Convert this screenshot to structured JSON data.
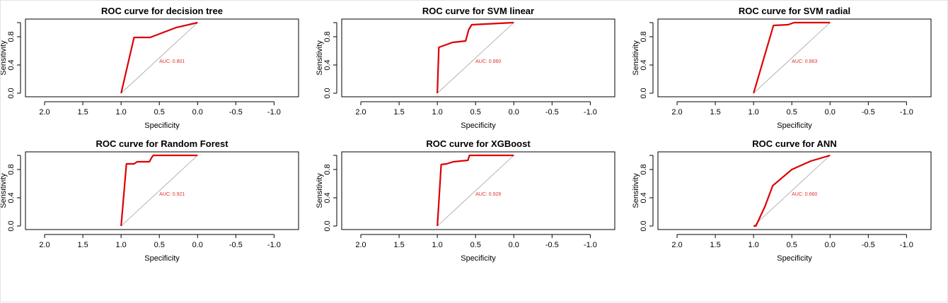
{
  "colors": {
    "roc_line": "#dd0000",
    "diagonal": "#a0a0a0",
    "auc_text": "#e03030",
    "axis": "#000000"
  },
  "chart_data": [
    {
      "type": "line",
      "title": "ROC curve for decision tree",
      "xlabel": "Specificity",
      "ylabel": "Sensitivity",
      "x_reversed": true,
      "xlim": [
        2.25,
        -1.32
      ],
      "ylim": [
        -0.05,
        1.05
      ],
      "x_ticks": [
        "2.0",
        "1.5",
        "1.0",
        "0.5",
        "0.0",
        "-0.5",
        "-1.0"
      ],
      "x_tick_values": [
        2.0,
        1.5,
        1.0,
        0.5,
        0.0,
        -0.5,
        -1.0
      ],
      "y_ticks": [
        "0.0",
        "0.4",
        "0.8"
      ],
      "y_tick_values": [
        0.0,
        0.4,
        0.8
      ],
      "auc_label": "AUC: 0.801",
      "auc_position": [
        0.5,
        0.45
      ],
      "series": [
        {
          "specificity": [
            1.0,
            0.83,
            0.62,
            0.28,
            0.0
          ],
          "sensitivity": [
            0.0,
            0.79,
            0.79,
            0.93,
            1.0
          ]
        }
      ]
    },
    {
      "type": "line",
      "title": "ROC curve for SVM linear",
      "xlabel": "Specificity",
      "ylabel": "Sensitivity",
      "x_reversed": true,
      "xlim": [
        2.25,
        -1.32
      ],
      "ylim": [
        -0.05,
        1.05
      ],
      "x_ticks": [
        "2.0",
        "1.5",
        "1.0",
        "0.5",
        "0.0",
        "-0.5",
        "-1.0"
      ],
      "x_tick_values": [
        2.0,
        1.5,
        1.0,
        0.5,
        0.0,
        -0.5,
        -1.0
      ],
      "y_ticks": [
        "0.0",
        "0.4",
        "0.8"
      ],
      "y_tick_values": [
        0.0,
        0.4,
        0.8
      ],
      "auc_label": "AUC: 0.860",
      "auc_position": [
        0.5,
        0.45
      ],
      "series": [
        {
          "specificity": [
            1.0,
            1.0,
            0.98,
            0.8,
            0.63,
            0.59,
            0.55,
            0.0
          ],
          "sensitivity": [
            0.0,
            0.01,
            0.65,
            0.72,
            0.74,
            0.9,
            0.97,
            1.0
          ]
        }
      ]
    },
    {
      "type": "line",
      "title": "ROC curve for SVM radial",
      "xlabel": "Specificity",
      "ylabel": "Sensitivity",
      "x_reversed": true,
      "xlim": [
        2.25,
        -1.32
      ],
      "ylim": [
        -0.05,
        1.05
      ],
      "x_ticks": [
        "2.0",
        "1.5",
        "1.0",
        "0.5",
        "0.0",
        "-0.5",
        "-1.0"
      ],
      "x_tick_values": [
        2.0,
        1.5,
        1.0,
        0.5,
        0.0,
        -0.5,
        -1.0
      ],
      "y_ticks": [
        "0.0",
        "0.4",
        "0.8"
      ],
      "y_tick_values": [
        0.0,
        0.4,
        0.8
      ],
      "auc_label": "AUC: 0.863",
      "auc_position": [
        0.5,
        0.45
      ],
      "series": [
        {
          "specificity": [
            1.0,
            0.74,
            0.55,
            0.47,
            0.0
          ],
          "sensitivity": [
            0.0,
            0.96,
            0.97,
            1.0,
            1.0
          ]
        }
      ]
    },
    {
      "type": "line",
      "title": "ROC curve for Random Forest",
      "xlabel": "Specificity",
      "ylabel": "Sensitivity",
      "x_reversed": true,
      "xlim": [
        2.25,
        -1.32
      ],
      "ylim": [
        -0.05,
        1.05
      ],
      "x_ticks": [
        "2.0",
        "1.5",
        "1.0",
        "0.5",
        "0.0",
        "-0.5",
        "-1.0"
      ],
      "x_tick_values": [
        2.0,
        1.5,
        1.0,
        0.5,
        0.0,
        -0.5,
        -1.0
      ],
      "y_ticks": [
        "0.0",
        "0.4",
        "0.8"
      ],
      "y_tick_values": [
        0.0,
        0.4,
        0.8
      ],
      "auc_label": "AUC: 0.921",
      "auc_position": [
        0.5,
        0.45
      ],
      "series": [
        {
          "specificity": [
            1.0,
            0.93,
            0.83,
            0.79,
            0.63,
            0.6,
            0.58,
            0.0
          ],
          "sensitivity": [
            0.0,
            0.88,
            0.88,
            0.91,
            0.91,
            0.97,
            1.0,
            1.0
          ]
        }
      ]
    },
    {
      "type": "line",
      "title": "ROC curve for XGBoost",
      "xlabel": "Specificity",
      "ylabel": "Sensitivity",
      "x_reversed": true,
      "xlim": [
        2.25,
        -1.32
      ],
      "ylim": [
        -0.05,
        1.05
      ],
      "x_ticks": [
        "2.0",
        "1.5",
        "1.0",
        "0.5",
        "0.0",
        "-0.5",
        "-1.0"
      ],
      "x_tick_values": [
        2.0,
        1.5,
        1.0,
        0.5,
        0.0,
        -0.5,
        -1.0
      ],
      "y_ticks": [
        "0.0",
        "0.4",
        "0.8"
      ],
      "y_tick_values": [
        0.0,
        0.4,
        0.8
      ],
      "auc_label": "AUC: 0.928",
      "auc_position": [
        0.5,
        0.45
      ],
      "series": [
        {
          "specificity": [
            1.0,
            0.95,
            0.88,
            0.79,
            0.6,
            0.58,
            0.0
          ],
          "sensitivity": [
            0.0,
            0.87,
            0.88,
            0.91,
            0.93,
            1.0,
            1.0
          ]
        }
      ]
    },
    {
      "type": "line",
      "title": "ROC curve for ANN",
      "xlabel": "Specificity",
      "ylabel": "Sensitivity",
      "x_reversed": true,
      "xlim": [
        2.25,
        -1.32
      ],
      "ylim": [
        -0.05,
        1.05
      ],
      "x_ticks": [
        "2.0",
        "1.5",
        "1.0",
        "0.5",
        "0.0",
        "-0.5",
        "-1.0"
      ],
      "x_tick_values": [
        2.0,
        1.5,
        1.0,
        0.5,
        0.0,
        -0.5,
        -1.0
      ],
      "y_ticks": [
        "0.0",
        "0.4",
        "0.8"
      ],
      "y_tick_values": [
        0.0,
        0.4,
        0.8
      ],
      "auc_label": "AUC: 0.660",
      "auc_position": [
        0.5,
        0.45
      ],
      "series": [
        {
          "specificity": [
            1.0,
            0.97,
            0.85,
            0.75,
            0.5,
            0.25,
            0.0
          ],
          "sensitivity": [
            0.0,
            0.0,
            0.28,
            0.57,
            0.8,
            0.92,
            1.0
          ]
        }
      ]
    }
  ]
}
